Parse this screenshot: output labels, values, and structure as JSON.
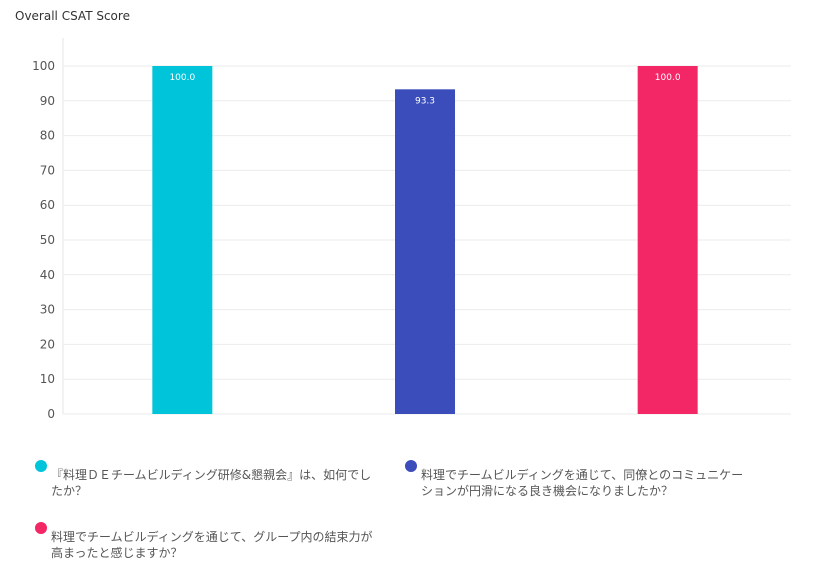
{
  "chart_data": {
    "type": "bar",
    "title": "Overall CSAT Score",
    "xlabel": "",
    "ylabel": "",
    "ylim": [
      0,
      100
    ],
    "yticks": [
      0,
      10,
      20,
      30,
      40,
      50,
      60,
      70,
      80,
      90,
      100
    ],
    "grid": true,
    "legend_position": "bottom",
    "series": [
      {
        "name": "『料理ＤＥチームビルディング研修&懇親会』は、如何でしたか？",
        "value": 100.0,
        "label": "100.0",
        "color": "#00c4da"
      },
      {
        "name": "料理でチームビルディングを通じて、同僚とのコミュニケーションが円滑になる良き機会になりましたか？",
        "value": 93.3,
        "label": "93.3",
        "color": "#3a4dbb"
      },
      {
        "name": "料理でチームビルディングを通じて、グループ内の結束力が高まったと感じますか？",
        "value": 100.0,
        "label": "100.0",
        "color": "#f32766"
      }
    ]
  }
}
